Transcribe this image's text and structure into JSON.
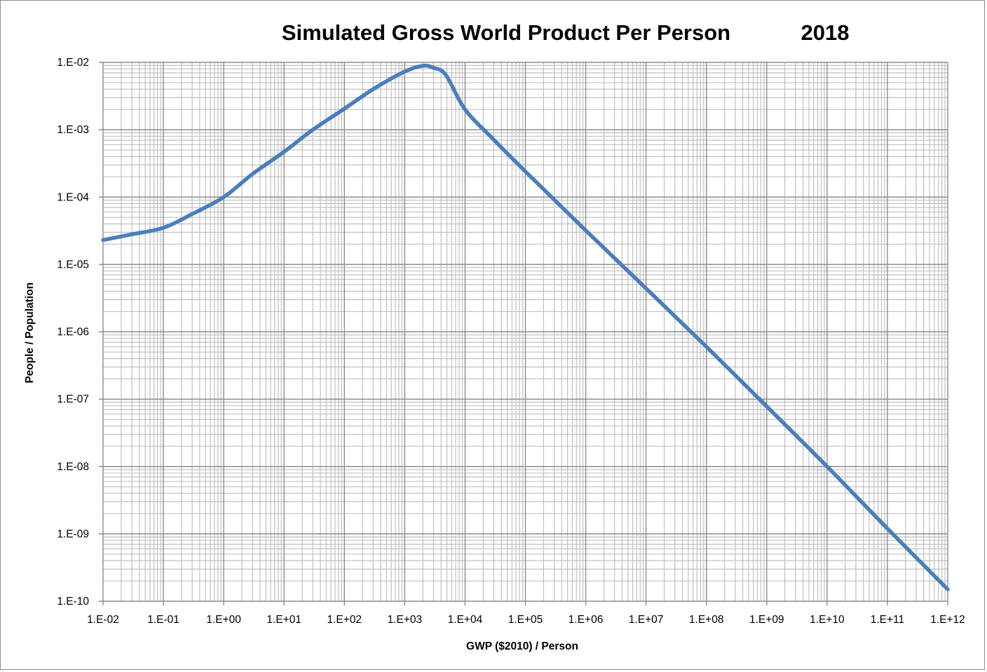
{
  "chart_data": {
    "type": "line",
    "title": "Simulated Gross World Product Per Person",
    "subtitle": "2018",
    "xlabel": "GWP ($2010) / Person",
    "ylabel": "People / Population",
    "x_scale": "log",
    "y_scale": "log",
    "xlim": [
      0.01,
      1000000000000.0
    ],
    "ylim": [
      1e-10,
      0.01
    ],
    "x_tick_labels": [
      "1.E-02",
      "1.E-01",
      "1.E+00",
      "1.E+01",
      "1.E+02",
      "1.E+03",
      "1.E+04",
      "1.E+05",
      "1.E+06",
      "1.E+07",
      "1.E+08",
      "1.E+09",
      "1.E+10",
      "1.E+11",
      "1.E+12"
    ],
    "y_tick_labels": [
      "1.E-02",
      "1.E-03",
      "1.E-04",
      "1.E-05",
      "1.E-06",
      "1.E-07",
      "1.E-08",
      "1.E-09",
      "1.E-10"
    ],
    "grid": "major and minor",
    "legend": "none",
    "series_color": "#4a7ebb",
    "series": [
      {
        "x": [
          0.01,
          0.03,
          0.1,
          0.3,
          1,
          3,
          10,
          30,
          100,
          300,
          1000,
          2000,
          3000,
          4800,
          10000,
          30000,
          100000,
          1000000.0,
          10000000.0,
          100000000.0,
          1000000000.0,
          10000000000.0,
          100000000000.0,
          1000000000000.0
        ],
        "y": [
          2.3e-05,
          2.8e-05,
          3.5e-05,
          5.6e-05,
          0.0001,
          0.00022,
          0.00047,
          0.001,
          0.00205,
          0.004,
          0.0073,
          0.0089,
          0.0083,
          0.0065,
          0.002,
          0.00071,
          0.00024,
          3.2e-05,
          4.4e-06,
          6e-07,
          7.8e-08,
          1e-08,
          1.2e-09,
          1.5e-10
        ]
      }
    ]
  }
}
